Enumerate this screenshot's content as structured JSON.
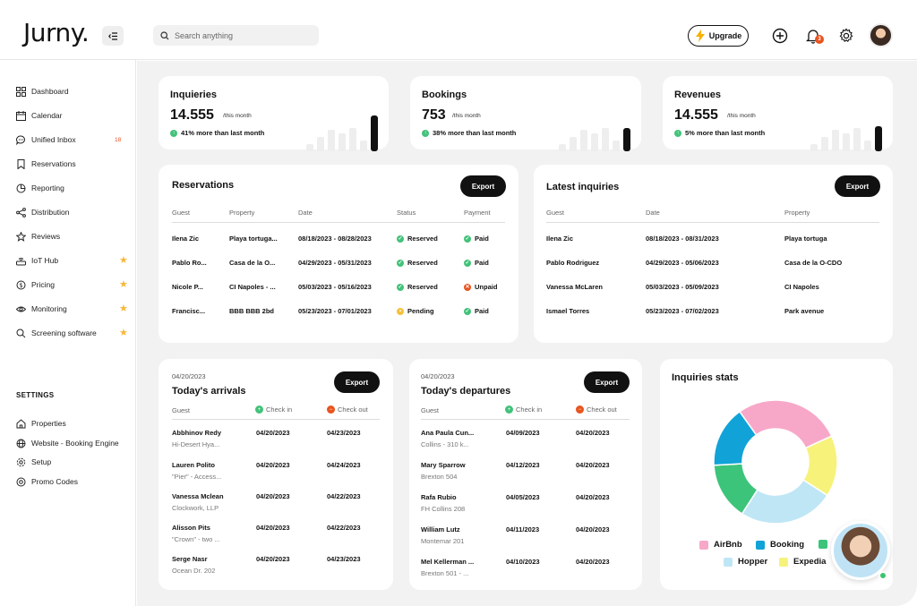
{
  "header": {
    "logo": "Jurny.",
    "search_placeholder": "Search anything",
    "upgrade_label": "Upgrade",
    "notifications_count": "3"
  },
  "sidebar": {
    "items": [
      {
        "label": "Dashboard",
        "icon": "grid-icon"
      },
      {
        "label": "Calendar",
        "icon": "calendar-icon"
      },
      {
        "label": "Unified Inbox",
        "icon": "chat-icon",
        "badge": "18"
      },
      {
        "label": "Reservations",
        "icon": "bookmark-icon"
      },
      {
        "label": "Reporting",
        "icon": "pie-icon"
      },
      {
        "label": "Distribution",
        "icon": "share-icon"
      },
      {
        "label": "Reviews",
        "icon": "star-outline-icon"
      },
      {
        "label": "IoT Hub",
        "icon": "router-icon",
        "star": true
      },
      {
        "label": "Pricing",
        "icon": "dollar-icon",
        "star": true
      },
      {
        "label": "Monitoring",
        "icon": "eye-icon",
        "star": true
      },
      {
        "label": "Screening software",
        "icon": "search-icon",
        "star": true
      }
    ],
    "settings_title": "SETTINGS",
    "settings_items": [
      {
        "label": "Properties",
        "icon": "home-icon"
      },
      {
        "label": "Website - Booking Engine",
        "icon": "globe-icon"
      },
      {
        "label": "Setup",
        "icon": "gear-icon"
      },
      {
        "label": "Promo Codes",
        "icon": "coupon-icon"
      }
    ]
  },
  "stats": [
    {
      "title": "Inquieries",
      "value": "14.555",
      "sub": "/this month",
      "trend": "41% more than last month"
    },
    {
      "title": "Bookings",
      "value": "753",
      "sub": "/this month",
      "trend": "38% more than last month"
    },
    {
      "title": "Revenues",
      "value": "14.555",
      "sub": "/this month",
      "trend": "5% more than last month"
    }
  ],
  "reservations": {
    "title": "Reservations",
    "export_label": "Export",
    "columns": [
      "Guest",
      "Property",
      "Date",
      "Status",
      "Payment"
    ],
    "rows": [
      {
        "guest": "Ilena Zic",
        "property": "Playa tortuga...",
        "date": "08/18/2023 - 08/28/2023",
        "status": "Reserved",
        "payment": "Paid"
      },
      {
        "guest": "Pablo Ro...",
        "property": "Casa de la O...",
        "date": "04/29/2023 - 05/31/2023",
        "status": "Reserved",
        "payment": "Paid"
      },
      {
        "guest": "Nicole P...",
        "property": "CI Napoles - ...",
        "date": "05/03/2023 - 05/16/2023",
        "status": "Reserved",
        "payment": "Unpaid"
      },
      {
        "guest": "Francisc...",
        "property": "BBB BBB 2bd",
        "date": "05/23/2023 - 07/01/2023",
        "status": "Pending",
        "payment": "Paid"
      }
    ]
  },
  "latest_inquiries": {
    "title": "Latest inquiries",
    "export_label": "Export",
    "columns": [
      "Guest",
      "Date",
      "Property"
    ],
    "rows": [
      {
        "guest": "Ilena Zic",
        "date": "08/18/2023 - 08/31/2023",
        "property": "Playa tortuga"
      },
      {
        "guest": "Pablo Rodriguez",
        "date": "04/29/2023 - 05/06/2023",
        "property": "Casa de la O-CDO"
      },
      {
        "guest": "Vanessa McLaren",
        "date": "05/03/2023 - 05/09/2023",
        "property": "CI Napoles"
      },
      {
        "guest": "Ismael Torres",
        "date": "05/23/2023 - 07/02/2023",
        "property": "Park avenue"
      }
    ]
  },
  "arrivals": {
    "date": "04/20/2023",
    "title": "Today's arrivals",
    "export_label": "Export",
    "columns": [
      "Guest",
      "Check in",
      "Check out"
    ],
    "rows": [
      {
        "guest": "Abbhinov Redy",
        "sub": "Hi-Desert Hya...",
        "in": "04/20/2023",
        "out": "04/23/2023"
      },
      {
        "guest": "Lauren Polito",
        "sub": "\"Pier\" - Access...",
        "in": "04/20/2023",
        "out": "04/24/2023"
      },
      {
        "guest": "Vanessa Mclean",
        "sub": "Clockwork, LLP",
        "in": "04/20/2023",
        "out": "04/22/2023"
      },
      {
        "guest": "Alisson Pits",
        "sub": "\"Crown\" - two ...",
        "in": "04/20/2023",
        "out": "04/22/2023"
      },
      {
        "guest": "Serge Nasr",
        "sub": "Ocean Dr. 202",
        "in": "04/20/2023",
        "out": "04/23/2023"
      }
    ]
  },
  "departures": {
    "date": "04/20/2023",
    "title": "Today's departures",
    "export_label": "Export",
    "columns": [
      "Guest",
      "Check in",
      "Check out"
    ],
    "rows": [
      {
        "guest": "Ana Paula Cun...",
        "sub": "Collins - 310 k...",
        "in": "04/09/2023",
        "out": "04/20/2023"
      },
      {
        "guest": "Mary Sparrow",
        "sub": "Brexton 504",
        "in": "04/12/2023",
        "out": "04/20/2023"
      },
      {
        "guest": "Rafa Rubio",
        "sub": "FH Collins 208",
        "in": "04/05/2023",
        "out": "04/20/2023"
      },
      {
        "guest": "William Lutz",
        "sub": "Montemar 201",
        "in": "04/11/2023",
        "out": "04/20/2023"
      },
      {
        "guest": "Mel Kellerman ...",
        "sub": "Brexton 501 - ...",
        "in": "04/10/2023",
        "out": "04/20/2023"
      }
    ]
  },
  "inquiries_stats": {
    "title": "Inquiries stats",
    "legend": [
      {
        "name": "AirBnb",
        "color": "#f7a8c8"
      },
      {
        "name": "Booking",
        "color": "#11a3d8"
      },
      {
        "name": "",
        "color": "#3cc47a"
      },
      {
        "name": "Hopper",
        "color": "#bfe6f5"
      },
      {
        "name": "Expedia",
        "color": "#f7f27a"
      }
    ]
  },
  "chart_data": {
    "type": "pie",
    "title": "Inquiries stats",
    "categories": [
      "AirBnb",
      "Expedia",
      "Hopper",
      "",
      "Booking"
    ],
    "values": [
      28,
      16,
      25,
      15,
      16
    ],
    "colors": [
      "#f7a8c8",
      "#f7f27a",
      "#bfe6f5",
      "#3cc47a",
      "#11a3d8"
    ]
  },
  "colors": {
    "accent": "#111111",
    "positive": "#42c27a",
    "negative": "#e8541e",
    "pending": "#f6c03c",
    "star": "#f6b73c",
    "background": "#f2f2f2"
  }
}
